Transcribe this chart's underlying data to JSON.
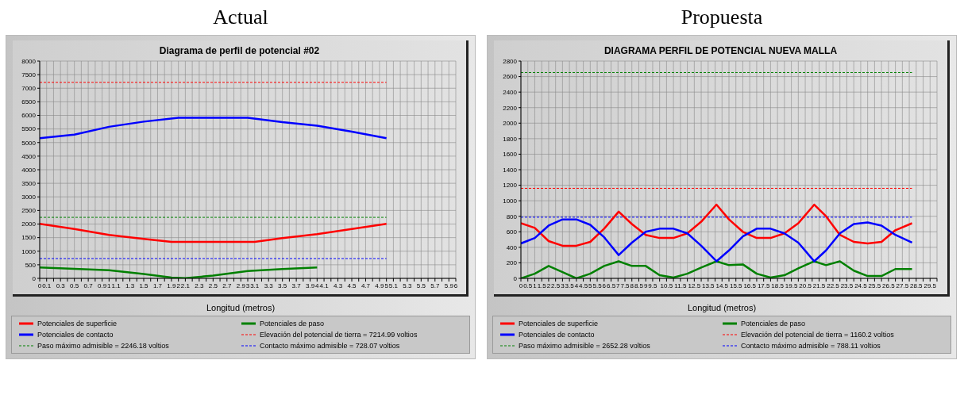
{
  "chart_data": [
    {
      "type": "line",
      "title": "Actual",
      "subtitle": "Diagrama de perfil de potencial #02",
      "xlabel": "Longitud (metros)",
      "legend": "bottom",
      "grid": true,
      "xlim": [
        0,
        6
      ],
      "xticks": [
        0,
        0.1,
        {
          "value": 0.2,
          "label": null
        },
        0.3,
        {
          "value": 0.4,
          "label": null
        },
        0.5,
        {
          "value": 0.6,
          "label": null
        },
        0.7,
        {
          "value": 0.8,
          "label": null
        },
        0.9,
        1,
        1.1,
        {
          "value": 1.2,
          "label": null
        },
        1.3,
        {
          "value": 1.4,
          "label": null
        },
        1.5,
        {
          "value": 1.6,
          "label": null
        },
        1.7,
        {
          "value": 1.8,
          "label": null
        },
        1.9,
        2,
        2.1,
        {
          "value": 2.2,
          "label": null
        },
        2.3,
        {
          "value": 2.4,
          "label": null
        },
        2.5,
        {
          "value": 2.6,
          "label": null
        },
        2.7,
        {
          "value": 2.8,
          "label": null
        },
        2.9,
        3,
        3.1,
        {
          "value": 3.2,
          "label": null
        },
        3.3,
        {
          "value": 3.4,
          "label": null
        },
        3.5,
        {
          "value": 3.6,
          "label": null
        },
        3.7,
        {
          "value": 3.8,
          "label": null
        },
        3.9,
        4,
        4.1,
        {
          "value": 4.2,
          "label": null
        },
        4.3,
        {
          "value": 4.4,
          "label": null
        },
        4.5,
        {
          "value": 4.6,
          "label": null
        },
        4.7,
        {
          "value": 4.8,
          "label": null
        },
        4.9,
        5,
        5.1,
        {
          "value": 5.2,
          "label": null
        },
        5.3,
        {
          "value": 5.4,
          "label": null
        },
        5.5,
        {
          "value": 5.6,
          "label": null
        },
        5.7,
        {
          "value": 5.8,
          "label": null
        },
        5.9,
        6
      ],
      "ylim": [
        0,
        8000
      ],
      "yticks": [
        0,
        500,
        1000,
        1500,
        2000,
        2500,
        3000,
        3500,
        4000,
        4500,
        5000,
        5500,
        6000,
        6500,
        7000,
        7500,
        8000
      ],
      "series": [
        {
          "name": "Potenciales de superficie",
          "color": "#ff0000",
          "x": [
            0,
            0.5,
            1,
            1.5,
            1.9,
            3.1,
            3.5,
            4,
            4.5,
            5
          ],
          "values": [
            2010,
            1820,
            1600,
            1450,
            1340,
            1340,
            1480,
            1630,
            1820,
            2010
          ]
        },
        {
          "name": "Potenciales de paso",
          "color": "#008000",
          "x": [
            0,
            0.5,
            1,
            1.5,
            1.9,
            2.1,
            2.5,
            3,
            3.5,
            4
          ],
          "values": [
            400,
            350,
            300,
            160,
            30,
            10,
            100,
            270,
            340,
            400
          ]
        },
        {
          "name": "Potenciales de contacto",
          "color": "#0000ff",
          "x": [
            0,
            0.5,
            1,
            1.5,
            2,
            3,
            3.5,
            4,
            4.5,
            5
          ],
          "values": [
            5160,
            5290,
            5580,
            5770,
            5910,
            5910,
            5750,
            5620,
            5400,
            5160
          ]
        }
      ],
      "ref_lines": [
        {
          "axis": "y",
          "value": 7214.99,
          "label": "Elevación del potencial de tierra = 7214.99 voltios",
          "color": "#ff0000",
          "line_style": "dashed"
        },
        {
          "axis": "y",
          "value": 2246.18,
          "label": "Paso máximo admisible = 2246.18 voltios",
          "color": "#008000",
          "line_style": "dashed"
        },
        {
          "axis": "y",
          "value": 728.07,
          "label": "Contacto máximo admisible = 728.07 voltios",
          "color": "#0000ff",
          "line_style": "dashed"
        }
      ]
    },
    {
      "type": "line",
      "title": "Propuesta",
      "subtitle": "DIAGRAMA PERFIL DE POTENCIAL NUEVA MALLA",
      "xlabel": "Longitud (metros)",
      "legend": "bottom",
      "grid": true,
      "xlim": [
        0,
        30
      ],
      "xticks": [
        0,
        0.5,
        1,
        1.5,
        2,
        2.5,
        3,
        3.5,
        4,
        4.5,
        5,
        5.5,
        6,
        6.5,
        7,
        7.5,
        8,
        8.5,
        9,
        9.5,
        {
          "value": 10,
          "label": null
        },
        10.5,
        {
          "value": 11,
          "label": null
        },
        11.5,
        {
          "value": 12,
          "label": null
        },
        12.5,
        {
          "value": 13,
          "label": null
        },
        13.5,
        {
          "value": 14,
          "label": null
        },
        14.5,
        {
          "value": 15,
          "label": null
        },
        15.5,
        {
          "value": 16,
          "label": null
        },
        16.5,
        {
          "value": 17,
          "label": null
        },
        17.5,
        {
          "value": 18,
          "label": null
        },
        18.5,
        {
          "value": 19,
          "label": null
        },
        19.5,
        {
          "value": 20,
          "label": null
        },
        20.5,
        {
          "value": 21,
          "label": null
        },
        21.5,
        {
          "value": 22,
          "label": null
        },
        22.5,
        {
          "value": 23,
          "label": null
        },
        23.5,
        {
          "value": 24,
          "label": null
        },
        24.5,
        {
          "value": 25,
          "label": null
        },
        25.5,
        {
          "value": 26,
          "label": null
        },
        26.5,
        {
          "value": 27,
          "label": null
        },
        27.5,
        {
          "value": 28,
          "label": null
        },
        28.5,
        {
          "value": 29,
          "label": null
        },
        29.5,
        {
          "value": 30,
          "label": null
        }
      ],
      "ylim": [
        0,
        2800
      ],
      "yticks": [
        0,
        200,
        400,
        600,
        800,
        1000,
        1200,
        1400,
        1600,
        1800,
        2000,
        2200,
        2400,
        2600,
        2800
      ],
      "series": [
        {
          "name": "Potenciales de superficie",
          "color": "#ff0000",
          "x": [
            0,
            1,
            2,
            3,
            4,
            5,
            6,
            7.05,
            8,
            9,
            10,
            11,
            12,
            13,
            14.1,
            15,
            16,
            17,
            18,
            19,
            20,
            21.15,
            22,
            23,
            24,
            25,
            26,
            27,
            28.2
          ],
          "values": [
            710,
            650,
            480,
            420,
            420,
            470,
            640,
            860,
            700,
            560,
            520,
            520,
            580,
            730,
            950,
            760,
            600,
            520,
            520,
            580,
            710,
            950,
            800,
            560,
            470,
            450,
            470,
            620,
            710
          ]
        },
        {
          "name": "Potenciales de paso",
          "color": "#008000",
          "x": [
            0,
            1,
            2,
            3,
            4,
            5,
            6,
            7.05,
            8,
            9,
            10,
            11,
            12,
            13,
            14.1,
            15,
            16,
            17,
            18,
            19,
            20,
            21.15,
            22,
            23,
            24,
            25,
            26,
            27,
            28.2
          ],
          "values": [
            0,
            60,
            160,
            80,
            0,
            60,
            160,
            220,
            160,
            160,
            40,
            10,
            60,
            140,
            220,
            170,
            180,
            60,
            10,
            40,
            130,
            220,
            170,
            220,
            100,
            30,
            30,
            120,
            120
          ]
        },
        {
          "name": "Potenciales de contacto",
          "color": "#0000ff",
          "x": [
            0,
            1,
            2,
            3,
            4,
            5,
            6,
            7.05,
            8,
            9,
            10,
            11,
            12,
            13,
            14.1,
            15,
            16,
            17,
            18,
            19,
            20,
            21.15,
            22,
            23,
            24,
            25,
            26,
            27,
            28.2
          ],
          "values": [
            450,
            520,
            680,
            760,
            760,
            690,
            530,
            300,
            460,
            600,
            640,
            640,
            580,
            420,
            220,
            360,
            540,
            640,
            640,
            580,
            460,
            220,
            360,
            580,
            700,
            720,
            680,
            560,
            460
          ]
        }
      ],
      "ref_lines": [
        {
          "axis": "y",
          "value": 1160.2,
          "label": "Elevación del potencial de tierra = 1160.2 voltios",
          "color": "#ff0000",
          "line_style": "dashed"
        },
        {
          "axis": "y",
          "value": 2652.28,
          "label": "Paso máximo admisible = 2652.28 voltios",
          "color": "#008000",
          "line_style": "dashed"
        },
        {
          "axis": "y",
          "value": 788.11,
          "label": "Contacto máximo admisible = 788.11 voltios",
          "color": "#0000ff",
          "line_style": "dashed"
        }
      ]
    }
  ]
}
